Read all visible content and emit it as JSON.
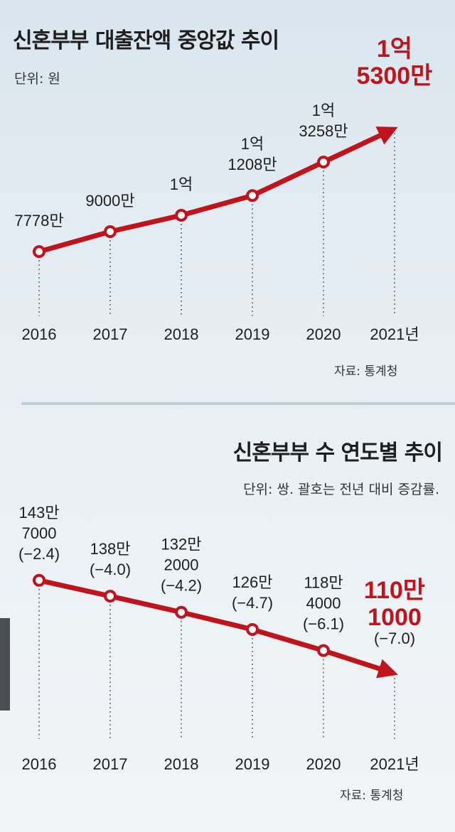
{
  "chart_data": [
    {
      "type": "line",
      "title": "신혼부부 대출잔액 중앙값 추이",
      "unit_label": "단위: 원",
      "source": "자료: 통계청",
      "categories": [
        "2016",
        "2017",
        "2018",
        "2019",
        "2020",
        "2021년"
      ],
      "series": [
        {
          "values": [
            7778,
            9000,
            10000,
            11208,
            13258,
            15300
          ]
        }
      ],
      "value_unit": "만원",
      "data_labels": [
        [
          "7778만"
        ],
        [
          "9000만"
        ],
        [
          "1억"
        ],
        [
          "1억",
          "1208만"
        ],
        [
          "1억",
          "3258만"
        ],
        [
          "1억",
          "5300만"
        ]
      ],
      "highlight_last": true,
      "line_color": "#c0141d",
      "ylim": [
        6000,
        16000
      ]
    },
    {
      "type": "line",
      "title": "신혼부부 수 연도별 추이",
      "unit_label": "단위: 쌍. 괄호는 전년 대비 증감률.",
      "source": "자료: 통계청",
      "categories": [
        "2016",
        "2017",
        "2018",
        "2019",
        "2020",
        "2021년"
      ],
      "series": [
        {
          "values": [
            1437000,
            1380000,
            1322000,
            1260000,
            1184000,
            1101000
          ]
        }
      ],
      "change_rates": [
        -2.4,
        -4.0,
        -4.2,
        -4.7,
        -6.1,
        -7.0
      ],
      "data_labels": [
        [
          "143만",
          "7000",
          "(−2.4)"
        ],
        [
          "138만",
          "(−4.0)"
        ],
        [
          "132만",
          "2000",
          "(−4.2)"
        ],
        [
          "126만",
          "(−4.7)"
        ],
        [
          "118만",
          "4000",
          "(−6.1)"
        ],
        [
          "110만",
          "1000",
          "(−7.0)"
        ]
      ],
      "highlight_last": true,
      "line_color": "#c0141d",
      "ylim": [
        1050000,
        1480000
      ]
    }
  ]
}
